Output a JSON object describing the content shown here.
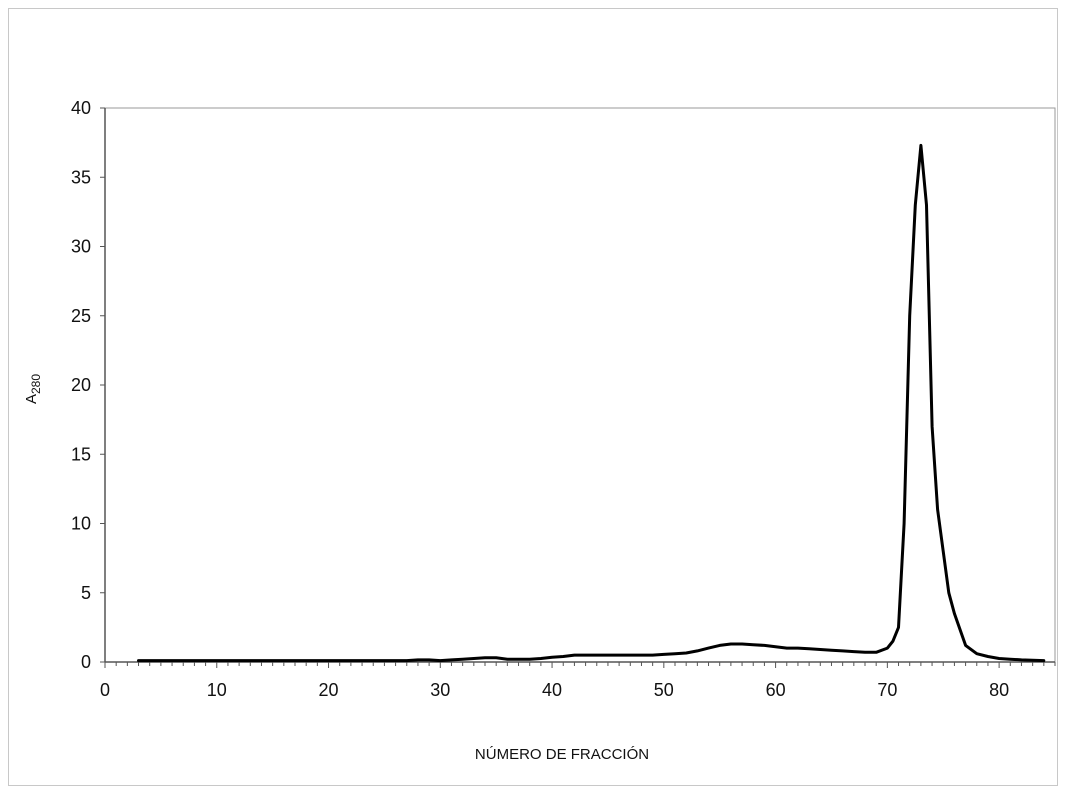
{
  "chart_data": {
    "type": "line",
    "title": "",
    "xlabel": "NÚMERO DE FRACCIÓN",
    "ylabel": "A",
    "ylabel_subscript": "280",
    "xlim": [
      0,
      85
    ],
    "ylim": [
      0,
      40
    ],
    "x_ticks": [
      0,
      10,
      20,
      30,
      40,
      50,
      60,
      70,
      80
    ],
    "y_ticks": [
      0,
      5,
      10,
      15,
      20,
      25,
      30,
      35,
      40
    ],
    "grid": false,
    "legend": "none",
    "line_color": "#000000",
    "series": [
      {
        "x": [
          3,
          10,
          20,
          27,
          28,
          29,
          30,
          31,
          32,
          33,
          34,
          35,
          36,
          37,
          38,
          39,
          40,
          41,
          42,
          43,
          44,
          45,
          46,
          47,
          48,
          49,
          50,
          51,
          52,
          53,
          54,
          55,
          56,
          57,
          58,
          59,
          60,
          61,
          62,
          63,
          64,
          65,
          66,
          67,
          68,
          69,
          70,
          70.5,
          71,
          71.5,
          72,
          72.5,
          73,
          73.5,
          74,
          74.5,
          75,
          75.5,
          76,
          77,
          78,
          79,
          80,
          81,
          82,
          83,
          84
        ],
        "values": [
          0.1,
          0.1,
          0.1,
          0.1,
          0.15,
          0.15,
          0.1,
          0.15,
          0.2,
          0.25,
          0.3,
          0.3,
          0.2,
          0.2,
          0.2,
          0.25,
          0.35,
          0.4,
          0.5,
          0.5,
          0.5,
          0.5,
          0.5,
          0.5,
          0.5,
          0.5,
          0.55,
          0.6,
          0.65,
          0.8,
          1.0,
          1.2,
          1.3,
          1.3,
          1.25,
          1.2,
          1.1,
          1.0,
          1.0,
          0.95,
          0.9,
          0.85,
          0.8,
          0.75,
          0.7,
          0.7,
          1.0,
          1.5,
          2.5,
          10.0,
          25.0,
          33.0,
          37.3,
          33.0,
          17.0,
          11.0,
          8.0,
          5.0,
          3.5,
          1.2,
          0.6,
          0.4,
          0.25,
          0.2,
          0.15,
          0.12,
          0.1
        ]
      }
    ]
  }
}
